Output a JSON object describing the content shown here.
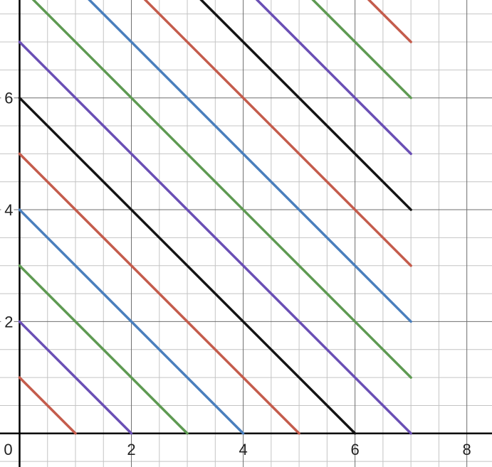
{
  "chart_data": {
    "type": "line",
    "title": "",
    "xlabel": "",
    "ylabel": "",
    "xlim": [
      -0.35,
      8.45
    ],
    "ylim": [
      -0.6,
      7.75
    ],
    "grid": true,
    "minor_grid_step": 0.5,
    "major_grid_step": 2,
    "x_tick_labels": [
      "0",
      "2",
      "4",
      "6",
      "8"
    ],
    "y_tick_labels": [
      "2",
      "4",
      "6"
    ],
    "colors": {
      "red": "#c45c4c",
      "blue": "#4a7fbd",
      "green": "#5e9a52",
      "purple": "#6a4fb5",
      "black": "#141414",
      "minor_grid": "#c4c4c4",
      "major_grid": "#6f6f6f",
      "axis": "#000000"
    },
    "series": [
      {
        "color": "red",
        "x": [
          0,
          1
        ],
        "y": [
          1,
          0
        ]
      },
      {
        "color": "purple",
        "x": [
          0,
          2
        ],
        "y": [
          2,
          0
        ]
      },
      {
        "color": "green",
        "x": [
          0,
          3
        ],
        "y": [
          3,
          0
        ]
      },
      {
        "color": "blue",
        "x": [
          0,
          4
        ],
        "y": [
          4,
          0
        ]
      },
      {
        "color": "red",
        "x": [
          0,
          5
        ],
        "y": [
          5,
          0
        ]
      },
      {
        "color": "black",
        "x": [
          0,
          6
        ],
        "y": [
          6,
          0
        ]
      },
      {
        "color": "purple",
        "x": [
          0,
          7
        ],
        "y": [
          7,
          0
        ]
      },
      {
        "color": "green",
        "x": [
          0,
          7
        ],
        "y": [
          8,
          1
        ]
      },
      {
        "color": "blue",
        "x": [
          0,
          7
        ],
        "y": [
          9,
          2
        ]
      },
      {
        "color": "red",
        "x": [
          0,
          7
        ],
        "y": [
          10,
          3
        ]
      },
      {
        "color": "black",
        "x": [
          0,
          7
        ],
        "y": [
          11,
          4
        ]
      },
      {
        "color": "purple",
        "x": [
          0,
          7
        ],
        "y": [
          12,
          5
        ]
      },
      {
        "color": "green",
        "x": [
          0,
          7
        ],
        "y": [
          13,
          6
        ]
      },
      {
        "color": "red",
        "x": [
          0,
          7
        ],
        "y": [
          14,
          7
        ]
      }
    ]
  }
}
